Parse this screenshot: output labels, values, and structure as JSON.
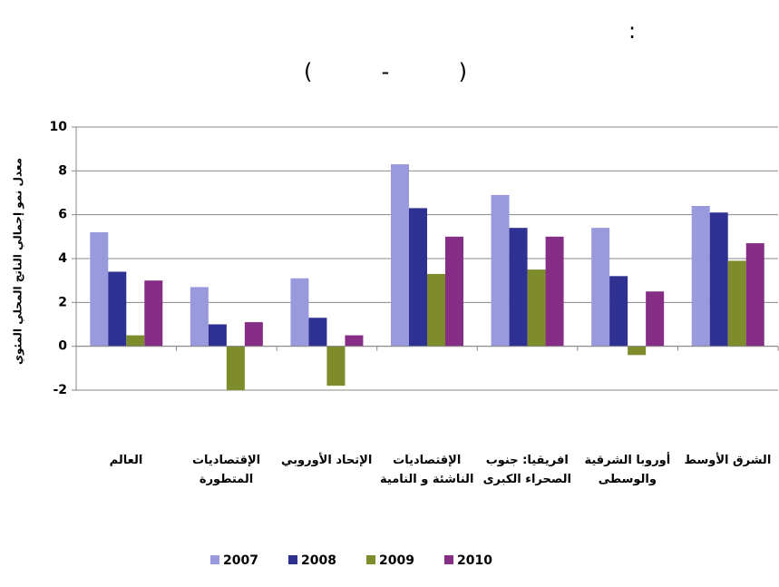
{
  "chart_data": {
    "type": "bar",
    "title": ":",
    "subtitle": "(          -          )",
    "y_label": "معدل نمو إجمالي الناتج المحلي المئوي",
    "categories": [
      "العالم",
      "الإقتصاديات المتطورة",
      "الإتحاد الأوروبي",
      "الإقتصاديات الناشئة و النامية",
      "افريقيا: جنوب الصحراء الكبرى",
      "أوروبا الشرقية والوسطى",
      "الشرق الأوسط"
    ],
    "series": [
      {
        "name": "2007",
        "color": "#9999dd",
        "values": [
          5.2,
          2.7,
          3.1,
          8.3,
          6.9,
          5.4,
          6.4
        ]
      },
      {
        "name": "2008",
        "color": "#2e3192",
        "values": [
          3.4,
          1.0,
          1.3,
          6.3,
          5.4,
          3.2,
          6.1
        ]
      },
      {
        "name": "2009",
        "color": "#7f8c2c",
        "values": [
          0.5,
          -2.0,
          -1.8,
          3.3,
          3.5,
          -0.4,
          3.9
        ]
      },
      {
        "name": "2010",
        "color": "#862d86",
        "values": [
          3.0,
          1.1,
          0.5,
          5.0,
          5.0,
          2.5,
          4.7
        ]
      }
    ],
    "ylim": [
      -2,
      10
    ],
    "yticks": [
      -2,
      0,
      2,
      4,
      6,
      8,
      10
    ],
    "grid": true
  }
}
